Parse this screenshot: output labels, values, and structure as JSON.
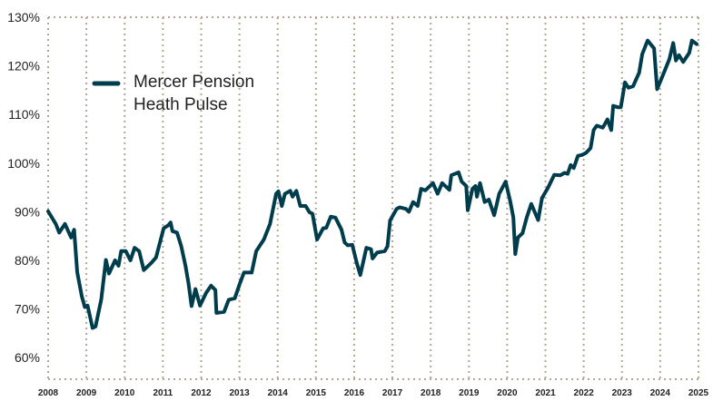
{
  "chart_data": {
    "type": "line",
    "title": "",
    "xlabel": "",
    "ylabel": "",
    "xlim": [
      2008,
      2025
    ],
    "ylim": [
      55.5,
      130
    ],
    "grid": true,
    "legend_placement": "top-left",
    "y_ticks": [
      "60%",
      "70%",
      "80%",
      "90%",
      "100%",
      "110%",
      "120%",
      "130%"
    ],
    "y_tick_values": [
      60,
      70,
      80,
      90,
      100,
      110,
      120,
      130
    ],
    "x_ticks": [
      "2008",
      "2009",
      "2010",
      "2011",
      "2012",
      "2013",
      "2014",
      "2015",
      "2016",
      "2017",
      "2018",
      "2019",
      "2020",
      "2021",
      "2022",
      "2023",
      "2024",
      "2025"
    ],
    "colors": {
      "line": "#003d4c",
      "grid": "#b3a796"
    },
    "series": [
      {
        "name": "Mercer Pension Heath Pulse",
        "legend_lines": [
          "Mercer Pension",
          "Heath Pulse"
        ],
        "x": [
          2008.0,
          2008.13,
          2008.2,
          2008.29,
          2008.44,
          2008.6,
          2008.68,
          2008.76,
          2008.88,
          2008.96,
          2009.03,
          2009.16,
          2009.24,
          2009.39,
          2009.51,
          2009.59,
          2009.75,
          2009.84,
          2009.91,
          2010.03,
          2010.15,
          2010.26,
          2010.38,
          2010.5,
          2010.7,
          2010.82,
          2011.02,
          2011.14,
          2011.2,
          2011.25,
          2011.37,
          2011.48,
          2011.59,
          2011.67,
          2011.75,
          2011.85,
          2011.97,
          2012.13,
          2012.26,
          2012.37,
          2012.4,
          2012.6,
          2012.72,
          2012.88,
          2013.0,
          2013.12,
          2013.32,
          2013.44,
          2013.64,
          2013.8,
          2013.96,
          2014.02,
          2014.11,
          2014.19,
          2014.33,
          2014.39,
          2014.49,
          2014.59,
          2014.73,
          2014.83,
          2014.91,
          2015.03,
          2015.19,
          2015.27,
          2015.39,
          2015.51,
          2015.67,
          2015.75,
          2015.83,
          2015.95,
          2016.07,
          2016.16,
          2016.32,
          2016.44,
          2016.48,
          2016.6,
          2016.8,
          2016.87,
          2016.94,
          2017.11,
          2017.19,
          2017.35,
          2017.43,
          2017.54,
          2017.66,
          2017.75,
          2017.86,
          2018.06,
          2018.18,
          2018.3,
          2018.49,
          2018.54,
          2018.73,
          2018.81,
          2018.93,
          2018.97,
          2019.09,
          2019.17,
          2019.21,
          2019.29,
          2019.41,
          2019.52,
          2019.66,
          2019.79,
          2019.96,
          2020.08,
          2020.16,
          2020.21,
          2020.28,
          2020.4,
          2020.51,
          2020.63,
          2020.81,
          2020.91,
          2021.07,
          2021.23,
          2021.39,
          2021.5,
          2021.58,
          2021.66,
          2021.74,
          2021.85,
          2021.96,
          2022.06,
          2022.18,
          2022.26,
          2022.34,
          2022.5,
          2022.62,
          2022.72,
          2022.77,
          2022.89,
          2022.97,
          2023.08,
          2023.17,
          2023.29,
          2023.45,
          2023.53,
          2023.67,
          2023.84,
          2023.92,
          2024.08,
          2024.24,
          2024.34,
          2024.41,
          2024.49,
          2024.6,
          2024.76,
          2024.83,
          2024.95
        ],
        "y": [
          90.1,
          88.4,
          87.5,
          85.7,
          87.5,
          84.7,
          86.3,
          77.6,
          72.6,
          70.4,
          70.7,
          66.1,
          66.4,
          72.0,
          80.1,
          77.3,
          80.0,
          78.9,
          81.9,
          81.9,
          80.0,
          82.6,
          81.9,
          78.0,
          79.5,
          80.6,
          86.6,
          87.2,
          87.8,
          86.0,
          85.7,
          82.9,
          78.9,
          75.2,
          70.6,
          74.1,
          70.7,
          73.3,
          74.8,
          73.9,
          69.2,
          69.4,
          71.9,
          72.2,
          75.0,
          77.5,
          77.5,
          81.9,
          84.3,
          87.5,
          93.7,
          94.2,
          91.2,
          93.7,
          94.3,
          93.1,
          94.3,
          91.2,
          91.2,
          89.9,
          89.6,
          84.3,
          86.6,
          86.7,
          89.0,
          88.8,
          86.3,
          83.7,
          83.1,
          83.2,
          79.4,
          77.0,
          82.6,
          82.3,
          80.4,
          81.6,
          81.9,
          82.9,
          88.2,
          90.6,
          90.9,
          90.6,
          90.0,
          92.0,
          91.2,
          94.7,
          94.4,
          95.9,
          93.7,
          95.9,
          94.5,
          97.5,
          98.1,
          96.2,
          95.3,
          90.3,
          94.7,
          95.3,
          93.1,
          95.9,
          92.0,
          92.5,
          89.3,
          93.7,
          96.2,
          92.1,
          88.8,
          81.3,
          84.7,
          85.6,
          88.8,
          91.6,
          88.3,
          92.8,
          95.0,
          97.6,
          97.5,
          98.0,
          97.8,
          99.6,
          99.0,
          101.5,
          101.7,
          102.1,
          103.1,
          106.8,
          107.7,
          107.3,
          109.0,
          106.8,
          111.8,
          111.5,
          111.5,
          116.6,
          115.5,
          115.8,
          118.6,
          122.4,
          125.2,
          123.6,
          115.2,
          118.3,
          121.4,
          124.7,
          121.1,
          122.2,
          120.8,
          122.7,
          125.2,
          124.5
        ]
      }
    ]
  }
}
